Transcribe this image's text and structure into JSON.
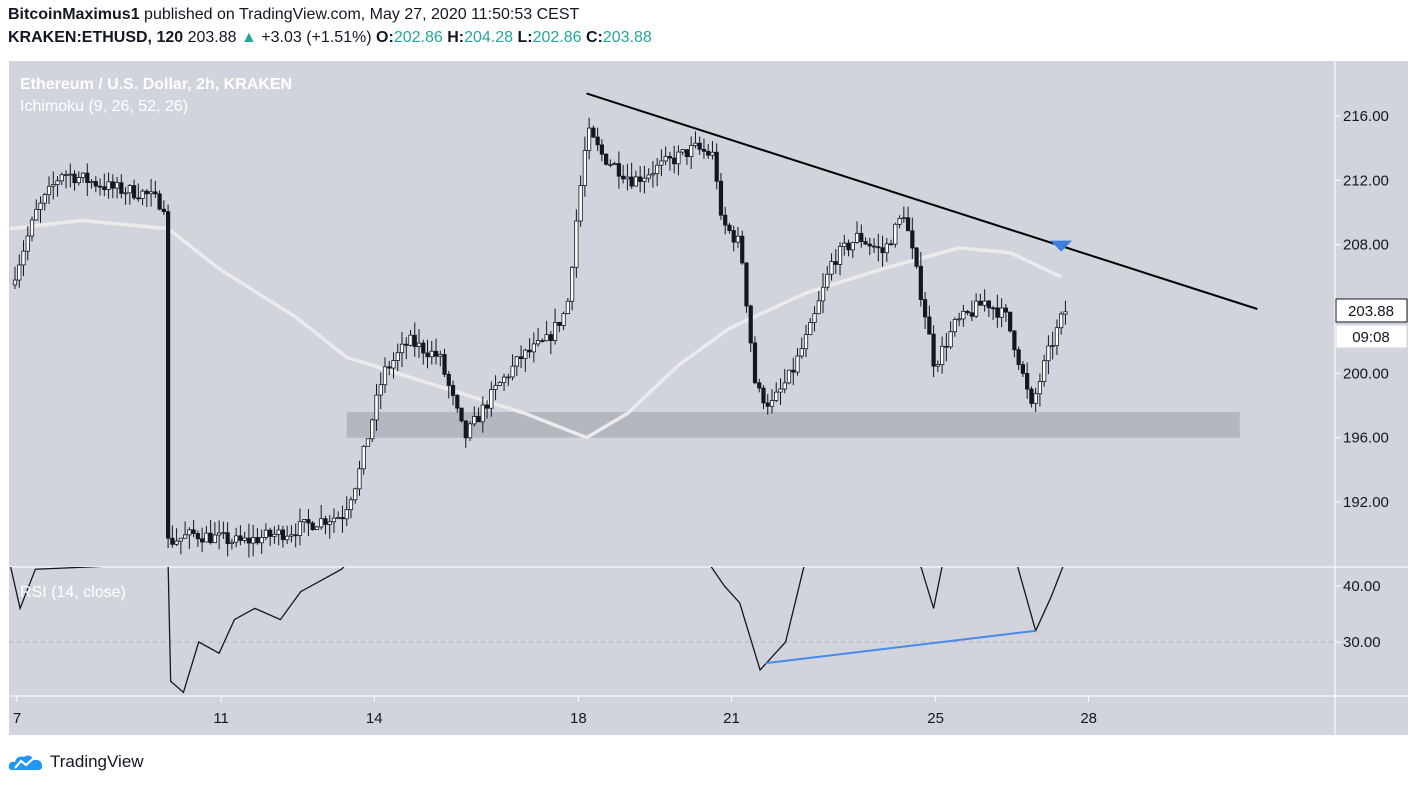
{
  "header": {
    "author": "BitcoinMaximus1",
    "published_text": "published on TradingView.com, May 27, 2020 11:50:53 CEST",
    "symbol": "KRAKEN:ETHUSD, 120",
    "last": "203.88",
    "change": "+3.03 (+1.51%)",
    "o_label": "O:",
    "o_value": "202.86",
    "h_label": "H:",
    "h_value": "204.28",
    "l_label": "L:",
    "l_value": "202.86",
    "c_label": "C:",
    "c_value": "203.88"
  },
  "chart": {
    "title": "Ethereum / U.S. Dollar, 2h, KRAKEN",
    "indicator": "Ichimoku (9, 26, 52, 26)",
    "rsi_label": "RSI (14, close)",
    "price_tag": "203.88",
    "countdown": "09:08"
  },
  "footer": {
    "brand": "TradingView"
  },
  "colors": {
    "background": "#d1d4dc",
    "candle": "#131722",
    "cloud_line": "#ebebeb",
    "support_zone": "#a9adb7",
    "trendline": "#000000",
    "rsi_trend": "#4a8ae8",
    "arrow": "#3d7fe0",
    "accent_up": "#26a69a"
  },
  "chart_data": [
    {
      "type": "candlestick",
      "title": "Ethereum / U.S. Dollar, 2h, KRAKEN",
      "x_tick_labels": [
        "7",
        "11",
        "14",
        "18",
        "21",
        "25",
        "28"
      ],
      "x_ticks_day": [
        7,
        11,
        14,
        18,
        21,
        25,
        28
      ],
      "xlim_day": [
        6.9,
        31.5
      ],
      "y_ticks": [
        "216.00",
        "212.00",
        "208.00",
        "204.00",
        "200.00",
        "196.00",
        "192.00"
      ],
      "ylim": [
        188.4,
        219.6
      ],
      "last_price": 203.88,
      "series_waypoints": [
        [
          7.0,
          205.5
        ],
        [
          7.5,
          210.0
        ],
        [
          8.0,
          212.5
        ],
        [
          9.0,
          211.5
        ],
        [
          9.6,
          211.2
        ],
        [
          10.0,
          210.5
        ],
        [
          10.05,
          189.5
        ],
        [
          10.6,
          190.0
        ],
        [
          11.5,
          189.5
        ],
        [
          12.5,
          190.2
        ],
        [
          13.0,
          190.8
        ],
        [
          13.5,
          191.2
        ],
        [
          13.8,
          193.5
        ],
        [
          14.3,
          200.0
        ],
        [
          14.8,
          202.0
        ],
        [
          15.4,
          201.0
        ],
        [
          15.9,
          196.0
        ],
        [
          16.5,
          199.0
        ],
        [
          17.0,
          201.0
        ],
        [
          17.5,
          202.0
        ],
        [
          17.9,
          204.0
        ],
        [
          18.1,
          210.0
        ],
        [
          18.3,
          215.0
        ],
        [
          18.6,
          213.5
        ],
        [
          19.2,
          212.0
        ],
        [
          19.8,
          213.0
        ],
        [
          20.4,
          214.0
        ],
        [
          20.8,
          213.5
        ],
        [
          20.9,
          209.5
        ],
        [
          21.3,
          208.0
        ],
        [
          21.6,
          199.0
        ],
        [
          21.9,
          198.0
        ],
        [
          22.3,
          200.0
        ],
        [
          22.7,
          203.0
        ],
        [
          23.1,
          207.0
        ],
        [
          23.6,
          208.5
        ],
        [
          24.1,
          207.5
        ],
        [
          24.5,
          210.0
        ],
        [
          24.7,
          207.0
        ],
        [
          24.9,
          204.0
        ],
        [
          25.1,
          200.5
        ],
        [
          25.5,
          203.0
        ],
        [
          26.1,
          204.5
        ],
        [
          26.5,
          203.5
        ],
        [
          26.7,
          201.5
        ],
        [
          27.0,
          197.8
        ],
        [
          27.3,
          201.0
        ],
        [
          27.65,
          203.88
        ]
      ],
      "ichimoku_line": [
        [
          6.9,
          209.0
        ],
        [
          8.3,
          209.5
        ],
        [
          10.0,
          209.0
        ],
        [
          11.0,
          206.5
        ],
        [
          12.5,
          203.5
        ],
        [
          13.5,
          201.0
        ],
        [
          15.0,
          199.5
        ],
        [
          17.0,
          197.5
        ],
        [
          18.2,
          196.0
        ],
        [
          19.0,
          197.5
        ],
        [
          20.0,
          200.5
        ],
        [
          21.0,
          202.8
        ],
        [
          22.5,
          205.0
        ],
        [
          24.0,
          206.5
        ],
        [
          25.5,
          207.8
        ],
        [
          26.5,
          207.5
        ],
        [
          27.5,
          206.0
        ]
      ],
      "support_zone": [
        196.0,
        197.6
      ],
      "support_zone_days": [
        13.5,
        31.0
      ],
      "trendline": [
        [
          18.2,
          217.4
        ],
        [
          31.5,
          204.0
        ]
      ],
      "down_arrow_at": [
        27.5,
        208.0
      ]
    },
    {
      "type": "line",
      "title": "RSI (14, close)",
      "y_tick_labels": [
        "40.00",
        "30.00"
      ],
      "y_ticks": [
        40,
        30
      ],
      "ylim": [
        21,
        44
      ],
      "reference_level": 30,
      "values": [
        [
          6.9,
          44
        ],
        [
          7.1,
          36
        ],
        [
          7.4,
          43
        ],
        [
          10.0,
          44
        ],
        [
          10.05,
          23
        ],
        [
          10.3,
          21
        ],
        [
          10.6,
          30
        ],
        [
          11.0,
          28
        ],
        [
          11.3,
          34
        ],
        [
          11.7,
          36
        ],
        [
          12.2,
          34
        ],
        [
          12.6,
          39
        ],
        [
          13.0,
          41
        ],
        [
          13.4,
          43
        ],
        [
          13.6,
          45
        ],
        [
          20.6,
          44
        ],
        [
          20.9,
          40
        ],
        [
          21.2,
          37
        ],
        [
          21.6,
          25
        ],
        [
          21.9,
          28
        ],
        [
          22.1,
          30
        ],
        [
          22.5,
          45
        ],
        [
          24.7,
          45
        ],
        [
          25.0,
          36
        ],
        [
          25.2,
          45
        ],
        [
          26.6,
          45
        ],
        [
          27.0,
          32
        ],
        [
          27.3,
          38
        ],
        [
          27.6,
          45
        ]
      ],
      "trendline": [
        [
          21.7,
          26.2
        ],
        [
          27.0,
          32.0
        ]
      ]
    }
  ]
}
